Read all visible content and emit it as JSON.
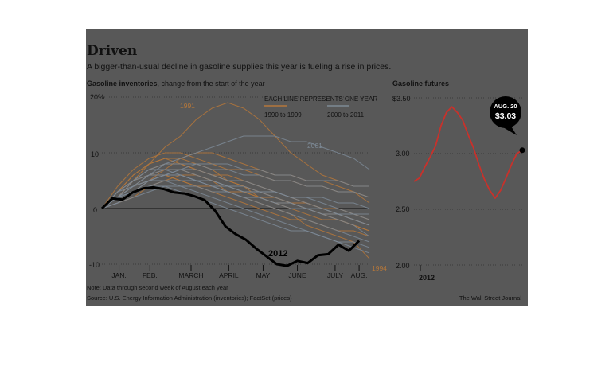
{
  "figure": {
    "title": "Driven",
    "subtitle": "A bigger-than-usual decline in gasoline supplies this year is fueling a rise in prices.",
    "note": "Note: Data through second week of August each year",
    "source": "Source: U.S. Energy Information Administration (inventories); FactSet (prices)",
    "credit": "The Wall Street Journal",
    "background": "#585858"
  },
  "chart_data": [
    {
      "type": "line",
      "title": "Gasoline inventories",
      "title_suffix": "change from the start of the year",
      "legend_heading": "EACH LINE REPRESENTS ONE YEAR",
      "legend": [
        {
          "label": "1990 to 1999",
          "color": "#b5773a"
        },
        {
          "label": "2000 to 2011",
          "color": "#7d8a96"
        }
      ],
      "ylim": [
        -10,
        20
      ],
      "y_ticks": [
        "20%",
        "10",
        "0",
        "-10"
      ],
      "y_tick_values": [
        20,
        10,
        0,
        -10
      ],
      "x_ticks": [
        "JAN.",
        "FEB.",
        "MARCH",
        "APRIL",
        "MAY",
        "JUNE",
        "JULY",
        "AUG."
      ],
      "x_tick_values": [
        0.5,
        1.4,
        2.6,
        3.7,
        4.7,
        5.7,
        6.8,
        7.5
      ],
      "xlim": [
        0,
        7.8
      ],
      "annotations": [
        "1991",
        "2001",
        "1994"
      ],
      "highlight": {
        "name": "2012",
        "color": "#000000",
        "x": [
          0,
          0.3,
          0.6,
          0.9,
          1.2,
          1.5,
          1.8,
          2.1,
          2.4,
          2.7,
          3.0,
          3.3,
          3.6,
          3.9,
          4.2,
          4.5,
          4.8,
          5.1,
          5.4,
          5.7,
          6.0,
          6.3,
          6.6,
          6.9,
          7.2,
          7.5
        ],
        "y": [
          0,
          1.8,
          1.6,
          2.9,
          3.6,
          3.8,
          3.5,
          2.9,
          2.7,
          2.2,
          1.5,
          -0.4,
          -3.2,
          -4.6,
          -5.6,
          -7.2,
          -8.6,
          -10.0,
          -10.3,
          -9.4,
          -9.8,
          -8.4,
          -8.2,
          -6.5,
          -7.6,
          -5.8
        ]
      },
      "background_series": [
        {
          "group": "1990 to 1999",
          "y": [
            0,
            2,
            5,
            8,
            11,
            13,
            16,
            18,
            19,
            18,
            16,
            13,
            10,
            8,
            6,
            5,
            4,
            4
          ]
        },
        {
          "group": "1990 to 1999",
          "y": [
            0,
            3,
            6,
            8,
            9,
            8,
            7,
            6,
            5,
            4,
            3,
            2,
            1,
            0,
            -1,
            -2,
            -3,
            -4
          ]
        },
        {
          "group": "1990 to 1999",
          "y": [
            0,
            2,
            4,
            6,
            7,
            7,
            6,
            5,
            3,
            2,
            1,
            0,
            -1,
            -3,
            -4,
            -5,
            -6,
            -9
          ]
        },
        {
          "group": "1990 to 1999",
          "y": [
            0,
            4,
            7,
            9,
            10,
            10,
            9,
            8,
            7,
            7,
            6,
            5,
            5,
            4,
            4,
            3,
            3,
            2
          ]
        },
        {
          "group": "1990 to 1999",
          "y": [
            0,
            1,
            3,
            5,
            6,
            5,
            4,
            3,
            2,
            1,
            0,
            -1,
            -2,
            -2,
            -3,
            -4,
            -4,
            -5
          ]
        },
        {
          "group": "1990 to 1999",
          "y": [
            0,
            2,
            5,
            7,
            8,
            8,
            7,
            6,
            6,
            5,
            4,
            3,
            2,
            1,
            0,
            -1,
            -2,
            -3
          ]
        },
        {
          "group": "1990 to 1999",
          "y": [
            0,
            3,
            5,
            6,
            6,
            5,
            4,
            4,
            3,
            3,
            2,
            2,
            1,
            1,
            0,
            0,
            -1,
            -2
          ]
        },
        {
          "group": "1990 to 1999",
          "y": [
            0,
            2,
            4,
            5,
            7,
            9,
            10,
            10,
            9,
            8,
            7,
            6,
            6,
            5,
            5,
            4,
            3,
            1
          ]
        },
        {
          "group": "1990 to 1999",
          "y": [
            0,
            1,
            2,
            4,
            5,
            6,
            6,
            5,
            4,
            3,
            2,
            1,
            1,
            0,
            -1,
            -1,
            -2,
            -3
          ]
        },
        {
          "group": "1990 to 1999",
          "y": [
            0,
            3,
            6,
            8,
            9,
            9,
            8,
            7,
            5,
            4,
            2,
            1,
            0,
            -1,
            -2,
            -2,
            -3,
            -4
          ]
        },
        {
          "group": "2000 to 2011",
          "y": [
            0,
            2,
            4,
            6,
            8,
            9,
            10,
            11,
            12,
            13,
            13,
            13,
            12,
            12,
            11,
            10,
            9,
            7
          ]
        },
        {
          "group": "2000 to 2011",
          "y": [
            0,
            3,
            5,
            7,
            8,
            8,
            8,
            7,
            7,
            6,
            6,
            5,
            5,
            4,
            4,
            3,
            3,
            2
          ]
        },
        {
          "group": "2000 to 2011",
          "y": [
            0,
            2,
            4,
            5,
            6,
            6,
            5,
            4,
            3,
            2,
            1,
            0,
            -1,
            -2,
            -3,
            -4,
            -5,
            -6
          ]
        },
        {
          "group": "2000 to 2011",
          "y": [
            0,
            1,
            3,
            5,
            6,
            7,
            7,
            6,
            5,
            5,
            4,
            3,
            2,
            2,
            1,
            0,
            -1,
            -2
          ]
        },
        {
          "group": "2000 to 2011",
          "y": [
            0,
            2,
            5,
            7,
            7,
            6,
            5,
            4,
            3,
            2,
            2,
            1,
            0,
            0,
            -1,
            -1,
            -2,
            -3
          ]
        },
        {
          "group": "2000 to 2011",
          "y": [
            0,
            3,
            4,
            5,
            5,
            4,
            3,
            2,
            1,
            0,
            -1,
            -2,
            -3,
            -4,
            -5,
            -6,
            -7,
            -8
          ]
        },
        {
          "group": "2000 to 2011",
          "y": [
            0,
            1,
            2,
            3,
            4,
            4,
            4,
            3,
            3,
            2,
            2,
            1,
            1,
            0,
            0,
            -1,
            -1,
            -1
          ]
        },
        {
          "group": "2000 to 2011",
          "y": [
            0,
            2,
            3,
            5,
            6,
            7,
            8,
            8,
            8,
            7,
            7,
            6,
            6,
            5,
            5,
            5,
            4,
            4
          ]
        },
        {
          "group": "2000 to 2011",
          "y": [
            0,
            2,
            4,
            6,
            7,
            7,
            6,
            5,
            4,
            3,
            3,
            2,
            1,
            0,
            -1,
            -2,
            -3,
            -5
          ]
        },
        {
          "group": "2000 to 2011",
          "y": [
            0,
            1,
            3,
            4,
            5,
            5,
            5,
            4,
            4,
            3,
            3,
            3,
            2,
            2,
            2,
            1,
            1,
            0
          ]
        },
        {
          "group": "2000 to 2011",
          "y": [
            0,
            3,
            5,
            6,
            6,
            6,
            5,
            5,
            4,
            4,
            3,
            3,
            2,
            1,
            0,
            -1,
            -2,
            -3
          ]
        },
        {
          "group": "2000 to 2011",
          "y": [
            0,
            2,
            3,
            4,
            4,
            3,
            2,
            1,
            0,
            -1,
            -2,
            -3,
            -4,
            -4,
            -5,
            -6,
            -6,
            -7
          ]
        }
      ]
    },
    {
      "type": "line",
      "title": "Gasoline futures",
      "ylim": [
        2.0,
        3.6
      ],
      "y_ticks": [
        "$3.50",
        "3.00",
        "2.50",
        "2.00"
      ],
      "y_tick_values": [
        3.5,
        3.0,
        2.5,
        2.0
      ],
      "x_ticks": [
        "2012"
      ],
      "callout": {
        "date": "AUG. 20",
        "value": "$3.03"
      },
      "series": [
        {
          "color": "#c8312b",
          "x": [
            0,
            0.05,
            0.1,
            0.15,
            0.2,
            0.25,
            0.3,
            0.35,
            0.4,
            0.45,
            0.5,
            0.55,
            0.6,
            0.65,
            0.7,
            0.75,
            0.8,
            0.85,
            0.9,
            0.95,
            1.0
          ],
          "y": [
            2.75,
            2.78,
            2.88,
            2.97,
            3.07,
            3.25,
            3.37,
            3.42,
            3.37,
            3.3,
            3.17,
            3.05,
            2.9,
            2.77,
            2.67,
            2.6,
            2.67,
            2.78,
            2.9,
            3.0,
            3.03
          ]
        }
      ]
    }
  ]
}
